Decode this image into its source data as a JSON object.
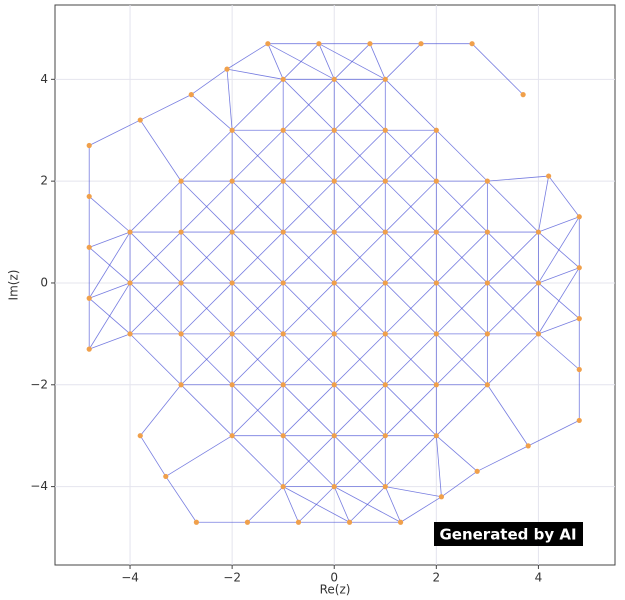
{
  "chart_data": {
    "type": "scatter",
    "x_label": "Re(z)",
    "y_label": "Im(z)",
    "annotation": "Generated by AI",
    "color": "#f0a04b",
    "edge_color": "#4a52d6",
    "grid": true,
    "xlim": [
      -5.47,
      5.5
    ],
    "ylim": [
      -5.54,
      5.46
    ],
    "xticks": [
      {
        "value": -4,
        "label": "−4"
      },
      {
        "value": -2,
        "label": "−2"
      },
      0,
      2,
      4
    ],
    "yticks": [
      {
        "value": -4,
        "label": "−4"
      },
      {
        "value": -2,
        "label": "−2"
      },
      0,
      2,
      4
    ],
    "x": [
      -1,
      0,
      1,
      -2,
      -1,
      0,
      1,
      2,
      -3,
      -2,
      -1,
      0,
      1,
      2,
      3,
      -4,
      -3,
      -2,
      -1,
      0,
      1,
      2,
      3,
      4,
      -4,
      -3,
      -2,
      -1,
      0,
      1,
      2,
      3,
      4,
      -4,
      -3,
      -2,
      -1,
      0,
      1,
      2,
      3,
      4,
      -3,
      -2,
      -1,
      0,
      1,
      2,
      3,
      -2,
      -1,
      0,
      1,
      2,
      -1,
      0,
      1,
      -4.8,
      -4.8,
      -4.8,
      -4.8,
      -4.8,
      -3.8,
      -3.8,
      -2.8,
      -2.1,
      -1.3,
      -0.3,
      0.7,
      1.7,
      2.7,
      3.7,
      4.2,
      4.8,
      4.8,
      4.8,
      4.8,
      4.8,
      3.8,
      2.8,
      2.1,
      1.3,
      0.3,
      -0.7,
      -1.7,
      -2.7,
      -3.3
    ],
    "y": [
      4,
      4,
      4,
      3,
      3,
      3,
      3,
      3,
      2,
      2,
      2,
      2,
      2,
      2,
      2,
      1,
      1,
      1,
      1,
      1,
      1,
      1,
      1,
      1,
      0,
      0,
      0,
      0,
      0,
      0,
      0,
      0,
      0,
      -1,
      -1,
      -1,
      -1,
      -1,
      -1,
      -1,
      -1,
      -1,
      -2,
      -2,
      -2,
      -2,
      -2,
      -2,
      -2,
      -3,
      -3,
      -3,
      -3,
      -3,
      -4,
      -4,
      -4,
      2.7,
      1.7,
      0.7,
      -0.3,
      -1.3,
      3.2,
      -3.0,
      3.7,
      4.2,
      4.7,
      4.7,
      4.7,
      4.7,
      4.7,
      3.7,
      2.1,
      1.3,
      0.3,
      -0.7,
      -1.7,
      -2.7,
      -3.2,
      -3.7,
      -4.2,
      -4.7,
      -4.7,
      -4.7,
      -4.7,
      -4.7,
      -3.8
    ]
  }
}
